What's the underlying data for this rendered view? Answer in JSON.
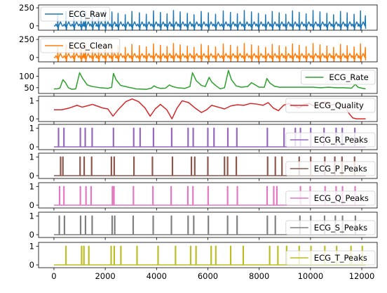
{
  "chart_data": {
    "type": "line",
    "x_ticks": [
      0,
      2000,
      4000,
      6000,
      8000,
      10000,
      12000
    ],
    "x_tick_labels": [
      "0",
      "2000",
      "4000",
      "6000",
      "8000",
      "10000",
      "12000"
    ],
    "xlim": [
      -600,
      12600
    ],
    "panels": [
      {
        "series": "ECG_Raw",
        "color": "#1f77b4",
        "kind": "ecg",
        "ylim": [
          -60,
          290
        ],
        "yticks": [
          0,
          250
        ],
        "ytick_labels": [
          "0",
          "250"
        ],
        "legend_loc": "upper-left",
        "beats": [
          150,
          470,
          780,
          1060,
          1230,
          1500,
          1740,
          2000,
          2260,
          2500,
          2780,
          3040,
          3330,
          3600,
          3880,
          4150,
          4410,
          4660,
          4920,
          5200,
          5460,
          5740,
          6020,
          6300,
          6600,
          6880,
          7150,
          7420,
          7700,
          7970,
          8250,
          8510,
          8780,
          9040,
          9300,
          9560,
          9830,
          10100,
          10370,
          10640,
          10900,
          11170,
          11430,
          11700,
          11950
        ],
        "peak": 220,
        "trough": -70,
        "baseline": 0,
        "x_end": 12150
      },
      {
        "series": "ECG_Clean",
        "color": "#ff7f0e",
        "kind": "ecg",
        "ylim": [
          -60,
          290
        ],
        "yticks": [
          0,
          250
        ],
        "ytick_labels": [
          "0",
          "250"
        ],
        "legend_loc": "upper-left",
        "beats": [
          150,
          470,
          780,
          1060,
          1230,
          1500,
          1740,
          2000,
          2260,
          2500,
          2780,
          3040,
          3330,
          3600,
          3880,
          4150,
          4410,
          4660,
          4920,
          5200,
          5460,
          5740,
          6020,
          6300,
          6600,
          6880,
          7150,
          7420,
          7700,
          7970,
          8250,
          8510,
          8780,
          9040,
          9300,
          9560,
          9830,
          10100,
          10370,
          10640,
          10900,
          11170,
          11430,
          11700,
          11950
        ],
        "peak": 200,
        "trough": -70,
        "baseline": 0,
        "x_end": 12150
      },
      {
        "series": "ECG_Rate",
        "color": "#2ca02c",
        "kind": "curve",
        "ylim": [
          25,
          135
        ],
        "yticks": [
          50,
          100
        ],
        "ytick_labels": [
          "50",
          "100"
        ],
        "legend_loc": "upper-right",
        "points": [
          [
            0,
            45
          ],
          [
            120,
            45
          ],
          [
            230,
            48
          ],
          [
            350,
            85
          ],
          [
            450,
            72
          ],
          [
            560,
            50
          ],
          [
            700,
            43
          ],
          [
            850,
            45
          ],
          [
            1000,
            115
          ],
          [
            1120,
            90
          ],
          [
            1300,
            62
          ],
          [
            1500,
            55
          ],
          [
            1800,
            50
          ],
          [
            2100,
            47
          ],
          [
            2250,
            52
          ],
          [
            2320,
            112
          ],
          [
            2420,
            85
          ],
          [
            2600,
            60
          ],
          [
            2900,
            52
          ],
          [
            3200,
            45
          ],
          [
            3600,
            43
          ],
          [
            3800,
            48
          ],
          [
            3900,
            58
          ],
          [
            4000,
            52
          ],
          [
            4150,
            47
          ],
          [
            4350,
            48
          ],
          [
            4500,
            62
          ],
          [
            4600,
            56
          ],
          [
            4800,
            50
          ],
          [
            5100,
            47
          ],
          [
            5300,
            55
          ],
          [
            5400,
            115
          ],
          [
            5550,
            80
          ],
          [
            5750,
            60
          ],
          [
            5900,
            55
          ],
          [
            6050,
            95
          ],
          [
            6150,
            75
          ],
          [
            6300,
            60
          ],
          [
            6480,
            45
          ],
          [
            6650,
            50
          ],
          [
            6800,
            125
          ],
          [
            6920,
            85
          ],
          [
            7100,
            58
          ],
          [
            7300,
            52
          ],
          [
            7550,
            55
          ],
          [
            7700,
            72
          ],
          [
            7850,
            62
          ],
          [
            8000,
            52
          ],
          [
            8200,
            52
          ],
          [
            8300,
            90
          ],
          [
            8420,
            70
          ],
          [
            8600,
            56
          ],
          [
            8800,
            52
          ],
          [
            9000,
            52
          ],
          [
            9200,
            52
          ],
          [
            9500,
            52
          ],
          [
            9800,
            52
          ],
          [
            10100,
            52
          ],
          [
            10400,
            50
          ],
          [
            10700,
            52
          ],
          [
            11000,
            50
          ],
          [
            11300,
            50
          ],
          [
            11600,
            48
          ],
          [
            11750,
            65
          ],
          [
            11850,
            52
          ],
          [
            12000,
            48
          ],
          [
            12150,
            45
          ]
        ]
      },
      {
        "series": "ECG_Quality",
        "color": "#d62728",
        "kind": "curve",
        "ylim": [
          -0.15,
          1.25
        ],
        "yticks": [
          0,
          1
        ],
        "ytick_labels": [
          "0",
          "1"
        ],
        "legend_loc": "upper-right",
        "points": [
          [
            0,
            0.5
          ],
          [
            300,
            0.5
          ],
          [
            600,
            0.6
          ],
          [
            900,
            0.75
          ],
          [
            1100,
            0.65
          ],
          [
            1300,
            0.72
          ],
          [
            1500,
            0.8
          ],
          [
            1700,
            0.7
          ],
          [
            1900,
            0.6
          ],
          [
            2100,
            0.55
          ],
          [
            2300,
            0.15
          ],
          [
            2500,
            0.5
          ],
          [
            2800,
            0.95
          ],
          [
            3050,
            1.1
          ],
          [
            3300,
            0.95
          ],
          [
            3550,
            0.6
          ],
          [
            3750,
            0.15
          ],
          [
            3950,
            0.55
          ],
          [
            4150,
            0.8
          ],
          [
            4400,
            0.5
          ],
          [
            4600,
            0.0
          ],
          [
            4800,
            0.6
          ],
          [
            5000,
            1.0
          ],
          [
            5250,
            0.9
          ],
          [
            5500,
            0.6
          ],
          [
            5750,
            0.35
          ],
          [
            5950,
            0.5
          ],
          [
            6150,
            0.75
          ],
          [
            6400,
            0.65
          ],
          [
            6650,
            0.55
          ],
          [
            6900,
            0.72
          ],
          [
            7150,
            0.78
          ],
          [
            7400,
            0.75
          ],
          [
            7650,
            0.85
          ],
          [
            7900,
            0.82
          ],
          [
            8150,
            0.75
          ],
          [
            8350,
            0.9
          ],
          [
            8550,
            0.6
          ],
          [
            8750,
            0.45
          ],
          [
            8950,
            0.75
          ],
          [
            9150,
            0.85
          ],
          [
            9350,
            0.72
          ],
          [
            9550,
            0.6
          ],
          [
            9750,
            0.8
          ],
          [
            9950,
            0.85
          ],
          [
            10150,
            0.7
          ],
          [
            10350,
            0.78
          ],
          [
            10550,
            0.95
          ],
          [
            10750,
            0.75
          ],
          [
            10950,
            0.8
          ],
          [
            11150,
            0.85
          ],
          [
            11350,
            0.7
          ],
          [
            11500,
            0.3
          ],
          [
            11650,
            0.05
          ],
          [
            11800,
            0.0
          ],
          [
            12150,
            0.0
          ]
        ]
      },
      {
        "series": "ECG_R_Peaks",
        "color": "#9467bd",
        "kind": "spikes",
        "ylim": [
          -0.15,
          1.2
        ],
        "yticks": [
          0,
          1
        ],
        "ytick_labels": [
          "0",
          "1"
        ],
        "legend_loc": "center-right",
        "spikes": [
          170,
          380,
          1020,
          1210,
          1480,
          2310,
          3100,
          3350,
          3870,
          4580,
          5220,
          5420,
          5990,
          6230,
          6770,
          7120,
          8310,
          8960,
          9400,
          9600,
          10000,
          10520,
          10990,
          11230,
          11720
        ]
      },
      {
        "series": "ECG_P_Peaks",
        "color": "#8c564b",
        "kind": "spikes",
        "ylim": [
          -0.15,
          1.2
        ],
        "yticks": [
          0,
          1
        ],
        "ytick_labels": [
          "0",
          "1"
        ],
        "legend_loc": "center-right",
        "spikes": [
          250,
          340,
          1010,
          1170,
          1460,
          2230,
          2340,
          3110,
          3830,
          4610,
          5350,
          5480,
          5990,
          6640,
          6760,
          7100,
          8320,
          8620,
          8880,
          9550,
          10000,
          10550,
          10940,
          11220,
          11710
        ]
      },
      {
        "series": "ECG_Q_Peaks",
        "color": "#e377c2",
        "kind": "spikes",
        "ylim": [
          -0.15,
          1.2
        ],
        "yticks": [
          0,
          1
        ],
        "ytick_labels": [
          "0",
          "1"
        ],
        "legend_loc": "center-right",
        "spikes": [
          210,
          380,
          1020,
          1240,
          1440,
          2270,
          2330,
          3090,
          3850,
          4560,
          5210,
          5410,
          6000,
          6760,
          7140,
          8300,
          8560,
          8680,
          9600,
          9980,
          10560,
          10990,
          11240,
          11730
        ]
      },
      {
        "series": "ECG_S_Peaks",
        "color": "#7f7f7f",
        "kind": "spikes",
        "ylim": [
          -0.15,
          1.2
        ],
        "yticks": [
          0,
          1
        ],
        "ytick_labels": [
          "0",
          "1"
        ],
        "legend_loc": "center-right",
        "spikes": [
          200,
          400,
          1030,
          1220,
          1480,
          2260,
          2360,
          3080,
          3860,
          4570,
          5220,
          5440,
          6010,
          6760,
          7130,
          8310,
          8620,
          9580,
          10000,
          10540,
          10960,
          11240,
          11740
        ]
      },
      {
        "series": "ECG_T_Peaks",
        "color": "#bcbd22",
        "kind": "spikes",
        "ylim": [
          -0.15,
          1.2
        ],
        "yticks": [
          0,
          1
        ],
        "ytick_labels": [
          "0",
          "1"
        ],
        "legend_loc": "center-right",
        "spikes": [
          460,
          1070,
          1160,
          1350,
          2220,
          2340,
          2600,
          3230,
          4050,
          4730,
          5320,
          5530,
          6120,
          6300,
          6880,
          7370,
          8400,
          8720,
          9060,
          9550,
          10010,
          10550,
          11010,
          11570,
          12010
        ]
      }
    ]
  }
}
